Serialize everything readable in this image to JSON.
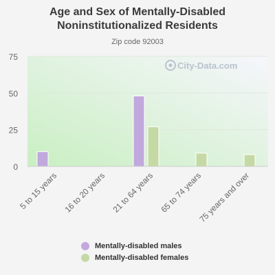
{
  "title": "Age and Sex of Mentally-Disabled Noninstitutionalized Residents",
  "subtitle": "Zip code 92003",
  "watermark": "City-Data.com",
  "colors": {
    "males": "#c1a8dd",
    "females": "#c5d9a4",
    "plot_bg_start": "#c9efc2",
    "plot_bg_end": "#f6f6fc",
    "axis_text": "#666666"
  },
  "chart_data": {
    "type": "bar",
    "title": "Age and Sex of Mentally-Disabled Noninstitutionalized Residents",
    "subtitle": "Zip code 92003",
    "categories": [
      "5 to 15 years",
      "16 to 20 years",
      "21 to 64 years",
      "65 to 74 years",
      "75 years and over"
    ],
    "series": [
      {
        "name": "Mentally-disabled males",
        "values": [
          10,
          0,
          48,
          0,
          0
        ]
      },
      {
        "name": "Mentally-disabled females",
        "values": [
          0,
          0,
          27,
          9,
          8
        ]
      }
    ],
    "ylim": [
      0,
      75
    ],
    "yticks": [
      0,
      25,
      50,
      75
    ],
    "grid": true,
    "legend_position": "bottom"
  }
}
